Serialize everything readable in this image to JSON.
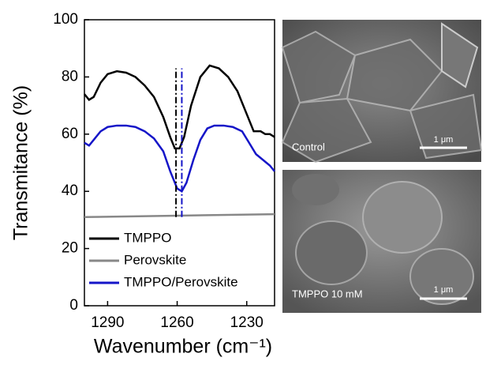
{
  "chart_data": {
    "type": "line",
    "x_label": "Wavenumber (cm⁻¹)",
    "y_label": "Transmitance (%)",
    "xlim": [
      1300,
      1218
    ],
    "xticks": [
      1290,
      1260,
      1230
    ],
    "ylim": [
      0,
      100
    ],
    "yticks": [
      0,
      20,
      40,
      60,
      80,
      100
    ],
    "legend": "lower left",
    "series": [
      {
        "name": "TMPPO",
        "color": "#000000",
        "x": [
          1300,
          1298,
          1296,
          1293,
          1290,
          1286,
          1282,
          1278,
          1274,
          1270,
          1266,
          1263,
          1261,
          1259,
          1257,
          1254,
          1250,
          1246,
          1242,
          1238,
          1234,
          1230,
          1227,
          1224,
          1222,
          1220,
          1218
        ],
        "values": [
          74,
          72,
          73,
          78,
          81,
          82,
          81.5,
          80,
          77,
          73,
          66,
          59,
          55,
          55,
          59,
          70,
          80,
          84,
          83,
          80,
          75,
          67,
          61,
          61,
          60,
          60,
          59
        ]
      },
      {
        "name": "Perovskite",
        "color": "#888888",
        "x": [
          1300,
          1260,
          1218
        ],
        "values": [
          31,
          31.5,
          32
        ]
      },
      {
        "name": "TMPPO/Perovskite",
        "color": "#1515c8",
        "x": [
          1300,
          1298,
          1296,
          1293,
          1290,
          1286,
          1282,
          1278,
          1274,
          1270,
          1266,
          1263,
          1260,
          1258,
          1256,
          1253,
          1250,
          1247,
          1244,
          1240,
          1236,
          1232,
          1229,
          1226,
          1223,
          1220,
          1218
        ],
        "values": [
          57,
          56,
          58,
          61,
          62.5,
          63,
          63,
          62.5,
          61,
          58.5,
          54,
          47,
          41,
          40,
          43,
          51,
          58,
          62,
          63,
          63,
          62.5,
          61,
          57,
          53,
          51,
          49,
          47
        ]
      }
    ],
    "vlines": [
      {
        "x": 1260.5,
        "ylim": [
          31,
          83
        ],
        "color": "#000000"
      },
      {
        "x": 1258,
        "ylim": [
          31,
          83
        ],
        "color": "#1515c8"
      }
    ]
  },
  "images": [
    {
      "label": "Control",
      "scale_label": "1 μm"
    },
    {
      "label": "TMPPO 10 mM",
      "scale_label": "1 μm"
    }
  ]
}
